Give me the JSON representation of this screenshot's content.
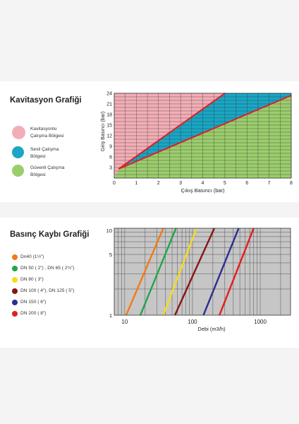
{
  "chart_data": [
    {
      "type": "area",
      "title": "Kavitasyon Grafiği",
      "xlabel": "Çıkış Basıncı (bar)",
      "ylabel": "Giriş Basıncı (bar)",
      "xlim": [
        0,
        8
      ],
      "ylim": [
        0,
        24
      ],
      "x_ticks": [
        "0",
        "1",
        "2",
        "3",
        "4",
        "5",
        "6",
        "7",
        "8"
      ],
      "y_ticks": [
        "3",
        "6",
        "9",
        "12",
        "15",
        "18",
        "21",
        "24"
      ],
      "grid": true,
      "regions": [
        {
          "name": "Kavitasyonlu Çalışma Bölgesi",
          "color": "#f2aeb6"
        },
        {
          "name": "Sesli Çalışma Bölgesi",
          "color": "#1aa6c4"
        },
        {
          "name": "Güvenli Çalışma Bölgesi",
          "color": "#9ccd6d"
        }
      ],
      "boundary_lines": [
        {
          "x": [
            0.2,
            5
          ],
          "y": [
            2.6,
            24
          ]
        },
        {
          "x": [
            0.2,
            8
          ],
          "y": [
            2.6,
            23.4
          ]
        }
      ]
    },
    {
      "type": "line",
      "title": "Basınç Kaybı Grafiği",
      "xlabel": "Debi (m3/h)",
      "x_scale": "log",
      "y_scale": "log",
      "xlim": [
        7,
        2800
      ],
      "ylim": [
        1,
        10
      ],
      "x_ticks": [
        "10",
        "100",
        "1000"
      ],
      "y_ticks": [
        "1",
        "5",
        "10"
      ],
      "grid": true,
      "series": [
        {
          "name": "Dn40 (1½\")",
          "color": "#f07b18",
          "x": [
            10.5,
            37
          ],
          "y": [
            1,
            10
          ]
        },
        {
          "name": "DN 50 ( 2\") , DN 65 ( 2½\")",
          "color": "#21a54a",
          "x": [
            17,
            57
          ],
          "y": [
            1,
            10
          ]
        },
        {
          "name": "DN 80 ( 3\")",
          "color": "#f4dd1a",
          "x": [
            37,
            115
          ],
          "y": [
            1,
            10
          ]
        },
        {
          "name": "DN 100 ( 4\"), DN 125 ( 5\")",
          "color": "#8b1414",
          "x": [
            55,
            210
          ],
          "y": [
            1,
            10
          ]
        },
        {
          "name": "DN 150 ( 6\")",
          "color": "#2b2f8f",
          "x": [
            145,
            480
          ],
          "y": [
            1,
            10
          ]
        },
        {
          "name": "DN 200 ( 8\")",
          "color": "#e31e1e",
          "x": [
            250,
            800
          ],
          "y": [
            1,
            10
          ]
        }
      ]
    }
  ]
}
